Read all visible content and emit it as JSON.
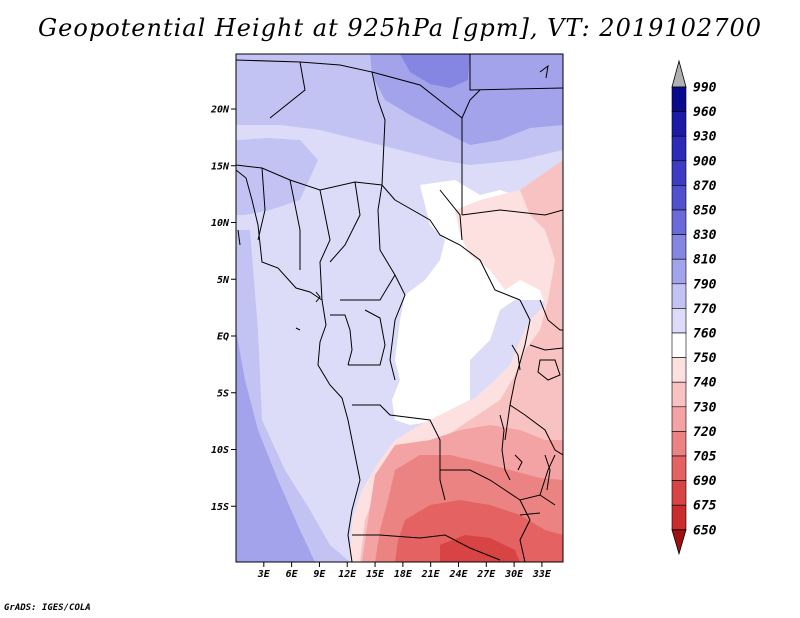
{
  "title": "Geopotential Height at 925hPa [gpm], VT: 2019102700",
  "credit": "GrADS: IGES/COLA",
  "lat_labels": [
    "20N",
    "15N",
    "10N",
    "5N",
    "EQ",
    "5S",
    "10S",
    "15S"
  ],
  "lat_values": [
    20,
    15,
    10,
    5,
    0,
    -5,
    -10,
    -15
  ],
  "lon_labels": [
    "3E",
    "6E",
    "9E",
    "12E",
    "15E",
    "18E",
    "21E",
    "24E",
    "27E",
    "30E",
    "33E"
  ],
  "lon_values": [
    3,
    6,
    9,
    12,
    15,
    18,
    21,
    24,
    27,
    30,
    33
  ],
  "colorbar": {
    "labels": [
      "990",
      "960",
      "930",
      "900",
      "870",
      "850",
      "830",
      "810",
      "790",
      "770",
      "760",
      "750",
      "740",
      "730",
      "720",
      "705",
      "690",
      "675",
      "650"
    ],
    "colors": [
      "#0a0a8c",
      "#1a1aa6",
      "#2b2bb8",
      "#3c3cc4",
      "#5151cf",
      "#6a6ad9",
      "#8585e2",
      "#a3a3ec",
      "#c3c3f3",
      "#dcdcf8",
      "#ffffff",
      "#fde0e0",
      "#f9c2c2",
      "#f3a3a3",
      "#ec8383",
      "#e46262",
      "#d84444",
      "#c82c2c",
      "#b31a1a"
    ],
    "top_arrow_color": "#b0b0b0",
    "bottom_arrow_color": "#a01010"
  }
}
